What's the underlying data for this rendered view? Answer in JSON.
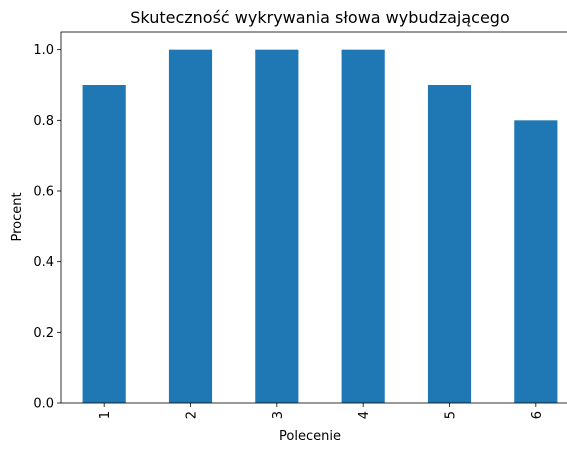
{
  "chart_data": {
    "type": "bar",
    "title": "Skuteczność wykrywania słowa wybudzającego",
    "xlabel": "Polecenie",
    "ylabel": "Procent",
    "categories": [
      "1",
      "2",
      "3",
      "4",
      "5",
      "6"
    ],
    "values": [
      0.9,
      1.0,
      1.0,
      1.0,
      0.9,
      0.8
    ],
    "ylim": [
      0,
      1.05
    ],
    "yticks": [
      0.0,
      0.2,
      0.4,
      0.6,
      0.8,
      1.0
    ],
    "ytick_labels": [
      "0.0",
      "0.2",
      "0.4",
      "0.6",
      "0.8",
      "1.0"
    ],
    "xtick_rotation": "vertical",
    "grid": false,
    "legend": "none",
    "bar_color": "#1f77b4"
  }
}
